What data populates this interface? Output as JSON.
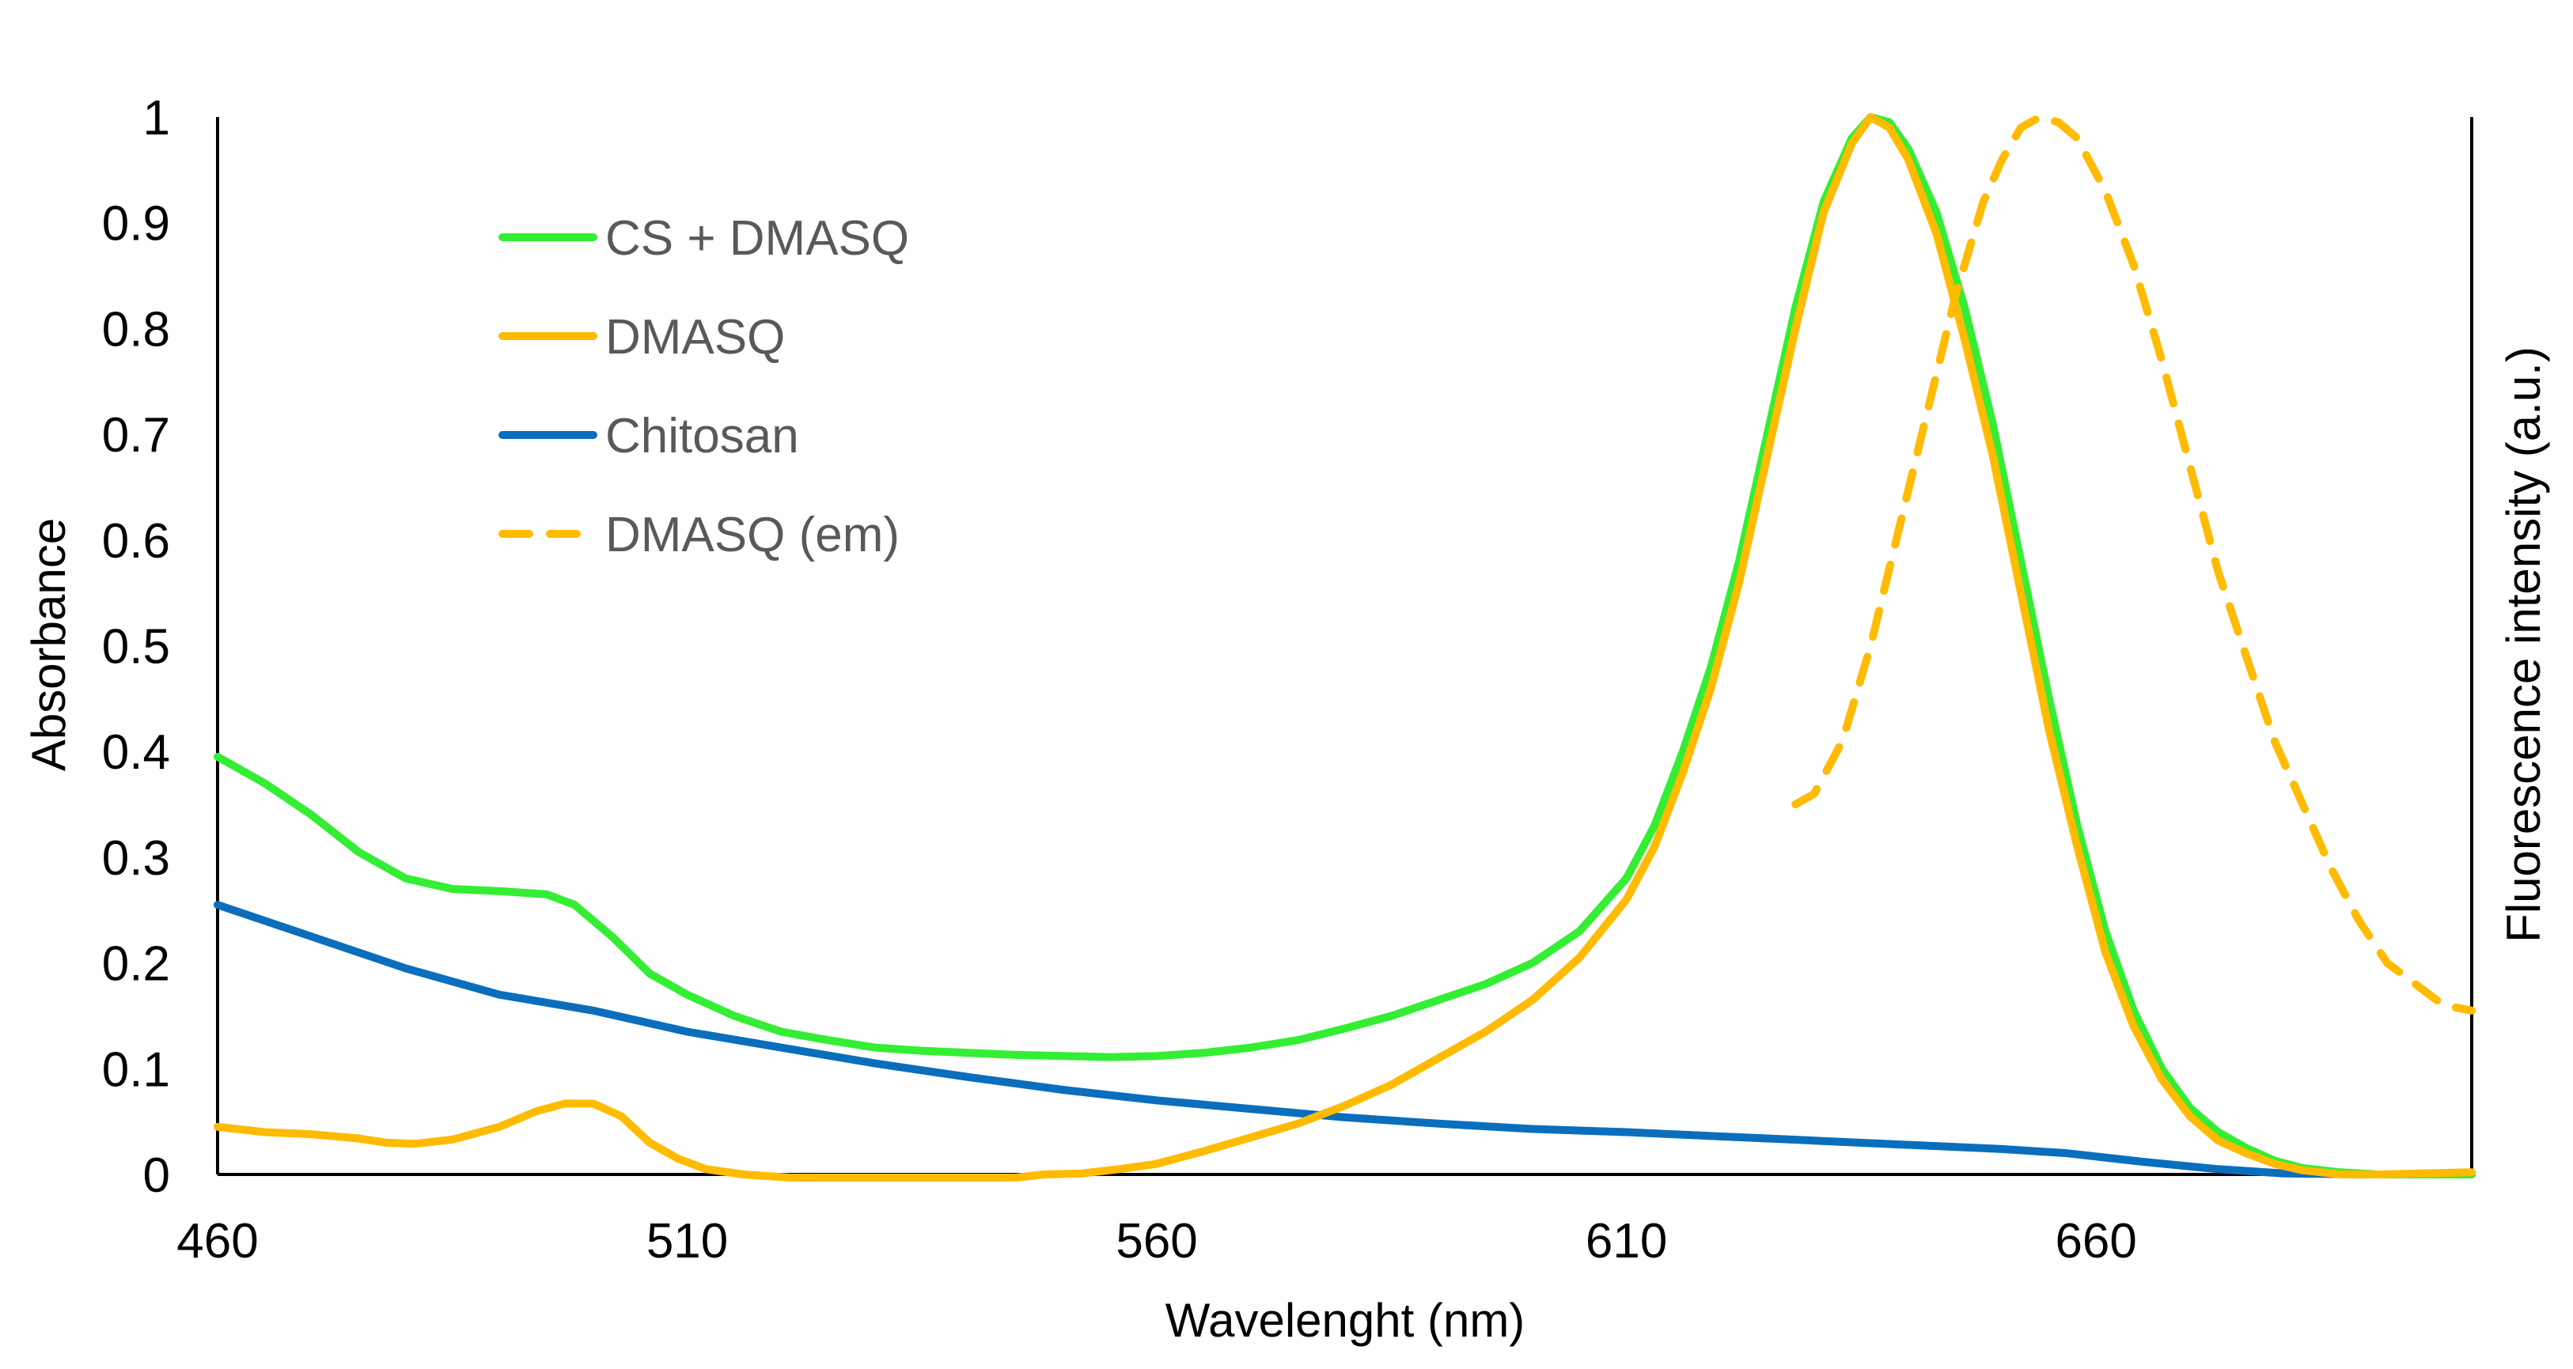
{
  "chart_data": {
    "type": "line",
    "title": "",
    "xlabel": "Wavelenght  (nm)",
    "ylabel": "Absorbance",
    "y2label": "Fluorescence intensity (a.u.)",
    "xlim": [
      460,
      700
    ],
    "ylim": [
      0,
      1
    ],
    "xticks": [
      460,
      510,
      560,
      610,
      660
    ],
    "yticks": [
      0,
      0.1,
      0.2,
      0.3,
      0.4,
      0.5,
      0.6,
      0.7,
      0.8,
      0.9,
      1
    ],
    "ytick_labels": [
      "0",
      "0.1",
      "0.2",
      "0.3",
      "0.4",
      "0.5",
      "0.6",
      "0.7",
      "0.8",
      "0.9",
      "1"
    ],
    "grid": false,
    "legend_position": "top-left",
    "series": [
      {
        "name": "CS + DMASQ",
        "color": "#33ee33",
        "dash": "solid",
        "points": [
          [
            460,
            0.395
          ],
          [
            465,
            0.37
          ],
          [
            470,
            0.34
          ],
          [
            475,
            0.305
          ],
          [
            480,
            0.28
          ],
          [
            485,
            0.27
          ],
          [
            490,
            0.268
          ],
          [
            495,
            0.265
          ],
          [
            498,
            0.255
          ],
          [
            502,
            0.225
          ],
          [
            506,
            0.19
          ],
          [
            510,
            0.17
          ],
          [
            515,
            0.15
          ],
          [
            520,
            0.135
          ],
          [
            525,
            0.127
          ],
          [
            530,
            0.12
          ],
          [
            535,
            0.117
          ],
          [
            540,
            0.115
          ],
          [
            545,
            0.113
          ],
          [
            550,
            0.112
          ],
          [
            555,
            0.111
          ],
          [
            560,
            0.112
          ],
          [
            565,
            0.115
          ],
          [
            570,
            0.12
          ],
          [
            575,
            0.127
          ],
          [
            580,
            0.138
          ],
          [
            585,
            0.15
          ],
          [
            590,
            0.165
          ],
          [
            595,
            0.18
          ],
          [
            600,
            0.2
          ],
          [
            605,
            0.23
          ],
          [
            610,
            0.28
          ],
          [
            613,
            0.33
          ],
          [
            616,
            0.4
          ],
          [
            619,
            0.48
          ],
          [
            622,
            0.58
          ],
          [
            625,
            0.7
          ],
          [
            628,
            0.82
          ],
          [
            631,
            0.92
          ],
          [
            634,
            0.98
          ],
          [
            636,
            1.0
          ],
          [
            638,
            0.995
          ],
          [
            640,
            0.97
          ],
          [
            643,
            0.91
          ],
          [
            646,
            0.82
          ],
          [
            649,
            0.71
          ],
          [
            652,
            0.58
          ],
          [
            655,
            0.45
          ],
          [
            658,
            0.33
          ],
          [
            661,
            0.23
          ],
          [
            664,
            0.155
          ],
          [
            667,
            0.1
          ],
          [
            670,
            0.063
          ],
          [
            673,
            0.04
          ],
          [
            676,
            0.025
          ],
          [
            679,
            0.013
          ],
          [
            682,
            0.006
          ],
          [
            686,
            0.002
          ],
          [
            690,
            0.0
          ],
          [
            700,
            0.0
          ]
        ]
      },
      {
        "name": "DMASQ",
        "color": "#ffbb00",
        "dash": "solid",
        "points": [
          [
            460,
            0.045
          ],
          [
            465,
            0.04
          ],
          [
            470,
            0.038
          ],
          [
            475,
            0.034
          ],
          [
            478,
            0.03
          ],
          [
            481,
            0.029
          ],
          [
            485,
            0.033
          ],
          [
            490,
            0.045
          ],
          [
            494,
            0.06
          ],
          [
            497,
            0.067
          ],
          [
            500,
            0.067
          ],
          [
            503,
            0.055
          ],
          [
            506,
            0.03
          ],
          [
            509,
            0.015
          ],
          [
            512,
            0.005
          ],
          [
            516,
            0.0
          ],
          [
            521,
            -0.003
          ],
          [
            545,
            -0.003
          ],
          [
            548,
            0.0
          ],
          [
            552,
            0.001
          ],
          [
            556,
            0.005
          ],
          [
            560,
            0.01
          ],
          [
            565,
            0.022
          ],
          [
            570,
            0.035
          ],
          [
            575,
            0.048
          ],
          [
            580,
            0.065
          ],
          [
            585,
            0.085
          ],
          [
            590,
            0.11
          ],
          [
            595,
            0.135
          ],
          [
            600,
            0.165
          ],
          [
            605,
            0.205
          ],
          [
            610,
            0.26
          ],
          [
            613,
            0.31
          ],
          [
            616,
            0.38
          ],
          [
            619,
            0.46
          ],
          [
            622,
            0.56
          ],
          [
            625,
            0.68
          ],
          [
            628,
            0.8
          ],
          [
            631,
            0.91
          ],
          [
            634,
            0.975
          ],
          [
            636,
            1.0
          ],
          [
            638,
            0.99
          ],
          [
            640,
            0.96
          ],
          [
            643,
            0.89
          ],
          [
            646,
            0.79
          ],
          [
            649,
            0.68
          ],
          [
            652,
            0.55
          ],
          [
            655,
            0.42
          ],
          [
            658,
            0.31
          ],
          [
            661,
            0.21
          ],
          [
            664,
            0.14
          ],
          [
            667,
            0.09
          ],
          [
            670,
            0.055
          ],
          [
            673,
            0.032
          ],
          [
            676,
            0.02
          ],
          [
            679,
            0.01
          ],
          [
            682,
            0.004
          ],
          [
            686,
            0.0
          ],
          [
            690,
            0.0
          ],
          [
            700,
            0.002
          ]
        ]
      },
      {
        "name": "Chitosan",
        "color": "#0a6ebd",
        "dash": "solid",
        "points": [
          [
            460,
            0.255
          ],
          [
            470,
            0.225
          ],
          [
            480,
            0.195
          ],
          [
            490,
            0.17
          ],
          [
            500,
            0.155
          ],
          [
            510,
            0.135
          ],
          [
            520,
            0.12
          ],
          [
            530,
            0.105
          ],
          [
            540,
            0.092
          ],
          [
            550,
            0.08
          ],
          [
            560,
            0.07
          ],
          [
            570,
            0.062
          ],
          [
            580,
            0.054
          ],
          [
            590,
            0.048
          ],
          [
            600,
            0.043
          ],
          [
            610,
            0.04
          ],
          [
            620,
            0.036
          ],
          [
            630,
            0.032
          ],
          [
            640,
            0.028
          ],
          [
            650,
            0.024
          ],
          [
            657,
            0.02
          ],
          [
            665,
            0.012
          ],
          [
            673,
            0.005
          ],
          [
            680,
            0.001
          ],
          [
            690,
            0.0
          ],
          [
            700,
            0.0
          ]
        ]
      },
      {
        "name": "DMASQ (em)",
        "color": "#ffbb00",
        "dash": "dashed",
        "points": [
          [
            628,
            0.35
          ],
          [
            630,
            0.36
          ],
          [
            633,
            0.41
          ],
          [
            636,
            0.5
          ],
          [
            639,
            0.61
          ],
          [
            642,
            0.72
          ],
          [
            645,
            0.83
          ],
          [
            648,
            0.92
          ],
          [
            650,
            0.96
          ],
          [
            652,
            0.99
          ],
          [
            654,
            1.0
          ],
          [
            656,
            0.995
          ],
          [
            658,
            0.98
          ],
          [
            661,
            0.93
          ],
          [
            664,
            0.86
          ],
          [
            667,
            0.77
          ],
          [
            670,
            0.67
          ],
          [
            673,
            0.57
          ],
          [
            676,
            0.49
          ],
          [
            679,
            0.41
          ],
          [
            682,
            0.35
          ],
          [
            685,
            0.29
          ],
          [
            688,
            0.24
          ],
          [
            691,
            0.2
          ],
          [
            694,
            0.18
          ],
          [
            697,
            0.16
          ],
          [
            700,
            0.155
          ]
        ]
      }
    ]
  }
}
